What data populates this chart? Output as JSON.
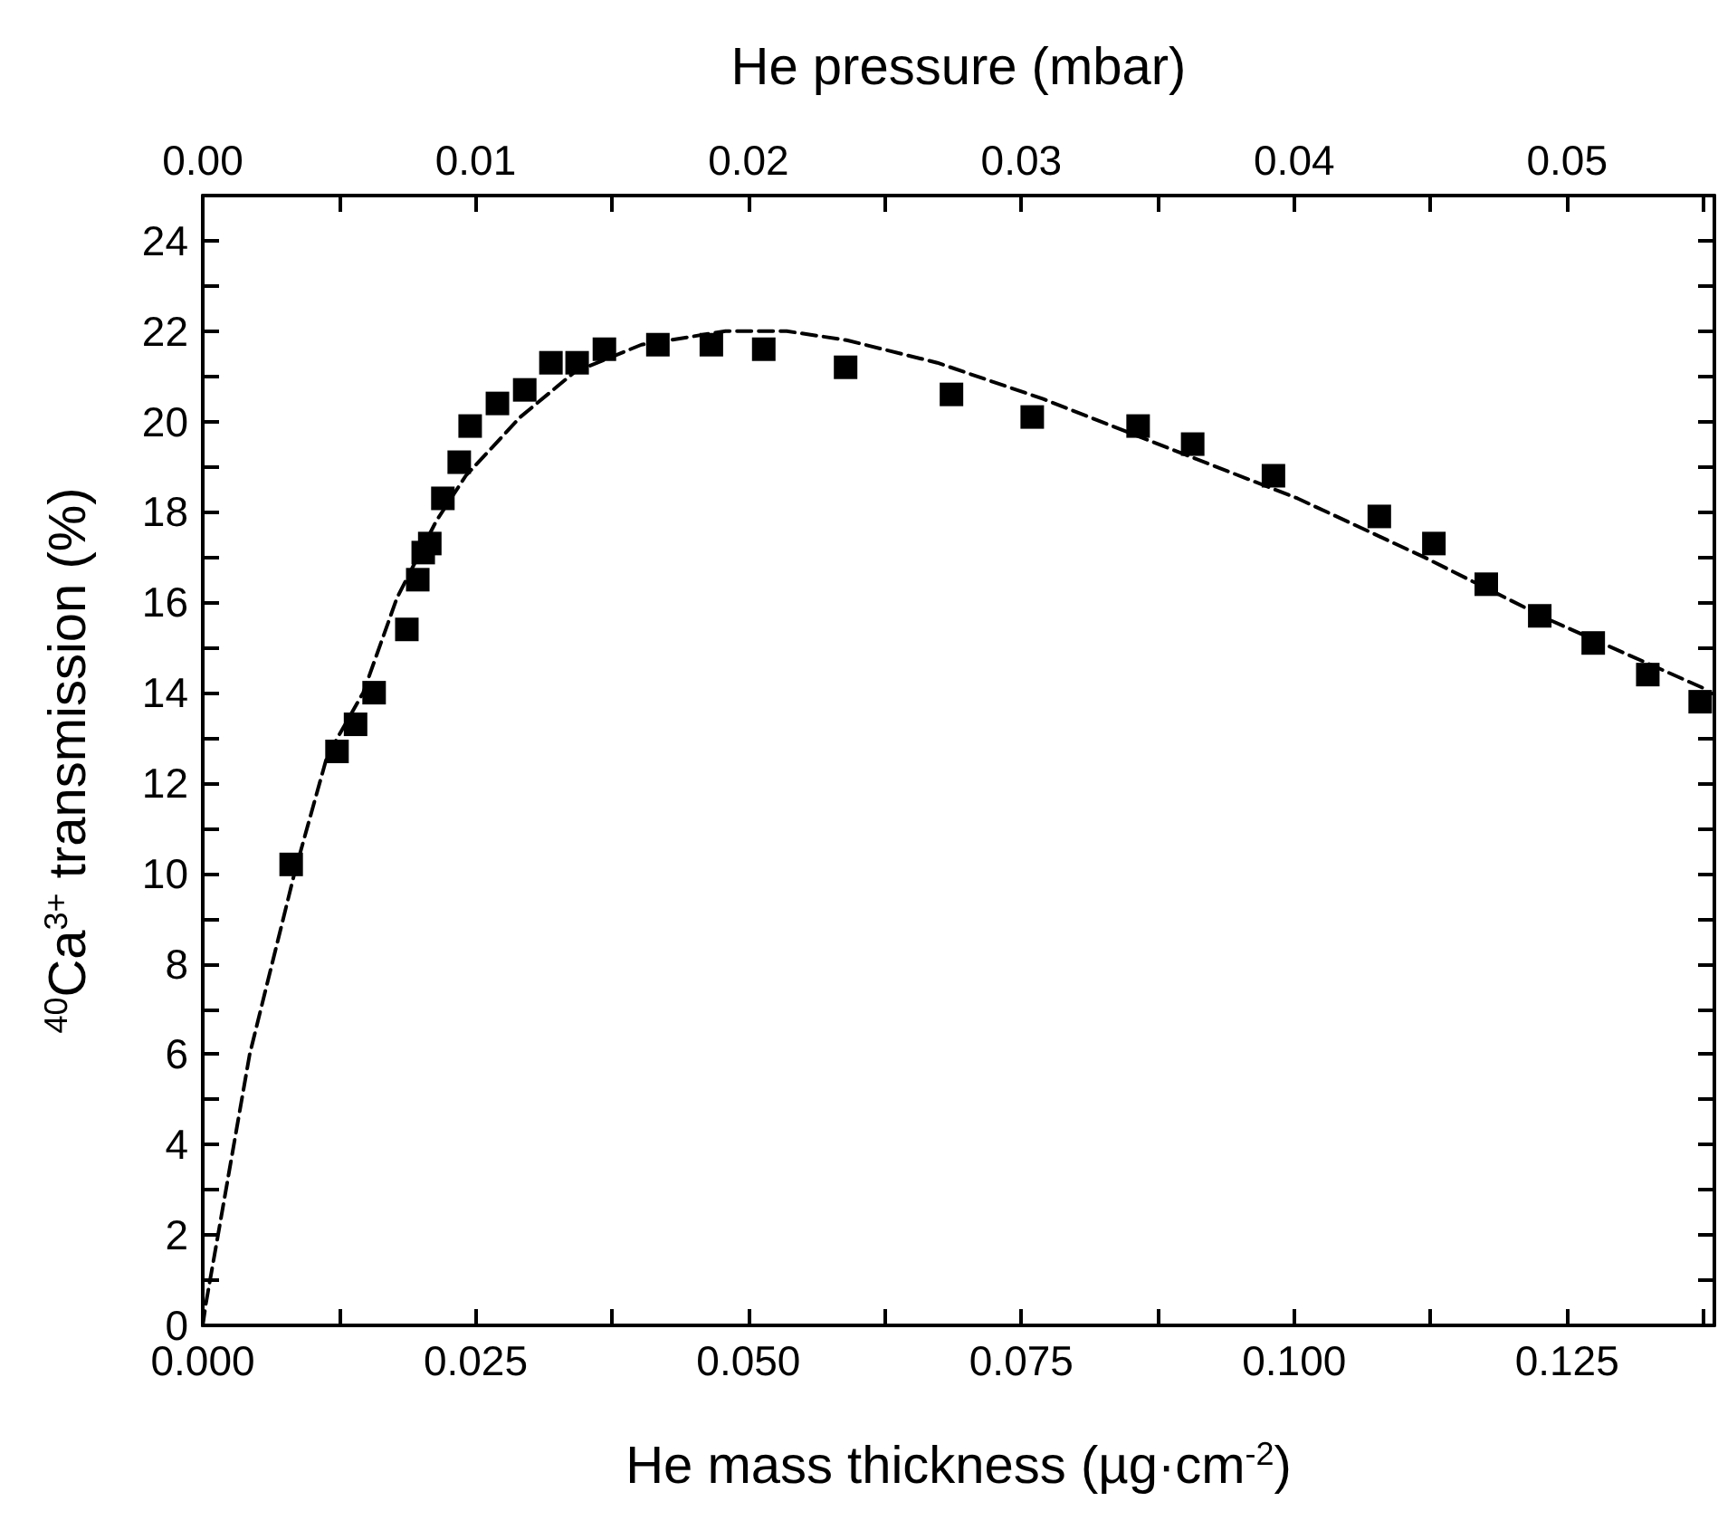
{
  "chart_data": {
    "type": "scatter",
    "xlabel": "He mass thickness (µg·cm$^{-2}$)",
    "ylabel": "$^{40}$Ca$^{3+}$ transmission (%)",
    "x2label": "He pressure (mbar)",
    "xlim": [
      0,
      0.1385
    ],
    "xticks": [
      {
        "value": 0,
        "label": "0.000"
      },
      {
        "value": 0.0125,
        "label": null
      },
      {
        "value": 0.025,
        "label": "0.025"
      },
      {
        "value": 0.0375,
        "label": null
      },
      {
        "value": 0.05,
        "label": "0.050"
      },
      {
        "value": 0.0625,
        "label": null
      },
      {
        "value": 0.075,
        "label": "0.075"
      },
      {
        "value": 0.0875,
        "label": null
      },
      {
        "value": 0.1,
        "label": "0.100"
      },
      {
        "value": 0.1125,
        "label": null
      },
      {
        "value": 0.125,
        "label": "0.125"
      },
      {
        "value": 0.1375,
        "label": null
      }
    ],
    "x2lim": [
      0,
      0.0554
    ],
    "x2ticks": [
      {
        "value": 0,
        "label": "0.00"
      },
      {
        "value": 0.005,
        "label": null
      },
      {
        "value": 0.01,
        "label": "0.01"
      },
      {
        "value": 0.015,
        "label": null
      },
      {
        "value": 0.02,
        "label": "0.02"
      },
      {
        "value": 0.025,
        "label": null
      },
      {
        "value": 0.03,
        "label": "0.03"
      },
      {
        "value": 0.035,
        "label": null
      },
      {
        "value": 0.04,
        "label": "0.04"
      },
      {
        "value": 0.045,
        "label": null
      },
      {
        "value": 0.05,
        "label": "0.05"
      },
      {
        "value": 0.055,
        "label": null
      }
    ],
    "ylim": [
      0,
      25
    ],
    "yticks": [
      0,
      {
        "value": 1,
        "label": null
      },
      2,
      {
        "value": 3,
        "label": null
      },
      4,
      {
        "value": 5,
        "label": null
      },
      6,
      {
        "value": 7,
        "label": null
      },
      8,
      {
        "value": 9,
        "label": null
      },
      10,
      {
        "value": 11,
        "label": null
      },
      12,
      {
        "value": 13,
        "label": null
      },
      14,
      {
        "value": 15,
        "label": null
      },
      16,
      {
        "value": 17,
        "label": null
      },
      18,
      {
        "value": 19,
        "label": null
      },
      20,
      {
        "value": 21,
        "label": null
      },
      22,
      {
        "value": 23,
        "label": null
      },
      24
    ],
    "grid": false,
    "series": [
      {
        "color": "#000000",
        "marker": "square",
        "x": [
          0.0081,
          0.0123,
          0.014,
          0.0157,
          0.0187,
          0.0197,
          0.0202,
          0.0208,
          0.022,
          0.0235,
          0.0245,
          0.027,
          0.0295,
          0.0319,
          0.0343,
          0.0368,
          0.0417,
          0.0466,
          0.0514,
          0.0589,
          0.0686,
          0.076,
          0.0857,
          0.0907,
          0.0981,
          0.1078,
          0.1128,
          0.1176,
          0.1225,
          0.1274,
          0.1324,
          0.1372
        ],
        "values": [
          10.2,
          12.7,
          13.3,
          14.0,
          15.4,
          16.5,
          17.1,
          17.3,
          18.3,
          19.1,
          19.9,
          20.4,
          20.7,
          21.3,
          21.3,
          21.6,
          21.7,
          21.7,
          21.6,
          21.2,
          20.6,
          20.1,
          19.9,
          19.5,
          18.8,
          17.9,
          17.3,
          16.4,
          15.7,
          15.1,
          14.4,
          13.8
        ]
      },
      {
        "type": "line",
        "color": "#000000",
        "marker": "none",
        "line_style": "dashed",
        "x": [
          0,
          0.0003,
          0.0014,
          0.0043,
          0.0084,
          0.0114,
          0.0147,
          0.0178,
          0.0214,
          0.0241,
          0.0291,
          0.0341,
          0.0402,
          0.0479,
          0.0535,
          0.059,
          0.0673,
          0.077,
          0.0886,
          0.1003,
          0.1119,
          0.1235,
          0.1375
        ],
        "values": [
          0,
          0.5,
          2.0,
          6.0,
          10.0,
          12.6,
          14.0,
          16.1,
          17.8,
          18.8,
          20.1,
          21.1,
          21.7,
          22.0,
          22.0,
          21.8,
          21.3,
          20.5,
          19.4,
          18.3,
          17.0,
          15.6,
          14.1
        ]
      }
    ]
  }
}
